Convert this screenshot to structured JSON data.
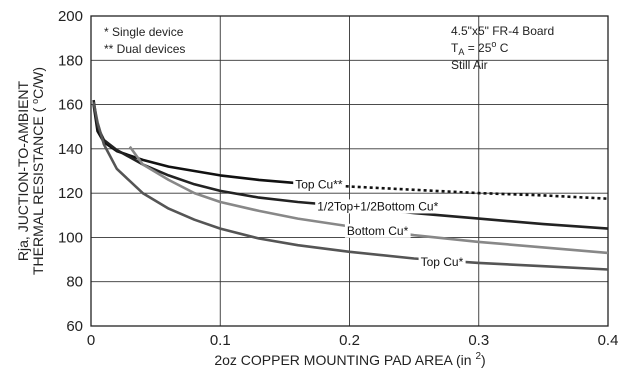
{
  "chart_data": {
    "type": "line",
    "title": "",
    "xlabel": "2oz COPPER MOUNTING PAD AREA (in ²)",
    "ylabel_line1": "Rja, JUCTION-TO-AMBIENT",
    "ylabel_line2": "THERMAL RESISTANCE ( °C/W)",
    "xlim": [
      0,
      0.4
    ],
    "ylim": [
      60,
      200
    ],
    "x_ticks": [
      "0",
      "0.1",
      "0.2",
      "0.3",
      "0.4"
    ],
    "y_ticks": [
      "60",
      "80",
      "100",
      "120",
      "140",
      "160",
      "180",
      "200"
    ],
    "grid": true,
    "legend_notes": [
      "* Single device",
      "** Dual devices"
    ],
    "conditions": [
      "4.5\"x5\" FR-4 Board",
      "TA = 25°C",
      "Still Air"
    ],
    "series": [
      {
        "name": "Top Cu**",
        "color": "#111111",
        "points": [
          [
            0.002,
            160
          ],
          [
            0.005,
            148
          ],
          [
            0.01,
            143
          ],
          [
            0.02,
            139
          ],
          [
            0.04,
            135
          ],
          [
            0.06,
            132
          ],
          [
            0.08,
            130
          ],
          [
            0.1,
            128
          ],
          [
            0.13,
            126
          ],
          [
            0.16,
            124.5
          ],
          [
            0.2,
            123
          ],
          [
            0.25,
            121.5
          ],
          [
            0.3,
            120
          ],
          [
            0.35,
            119
          ],
          [
            0.4,
            117.5
          ]
        ],
        "dashed_from_x": 0.16
      },
      {
        "name": "1/2Top+1/2Bottom Cu*",
        "color": "#222222",
        "points": [
          [
            0.002,
            162
          ],
          [
            0.005,
            150
          ],
          [
            0.01,
            144
          ],
          [
            0.02,
            139.5
          ],
          [
            0.04,
            133
          ],
          [
            0.06,
            128
          ],
          [
            0.08,
            124
          ],
          [
            0.1,
            121
          ],
          [
            0.13,
            118
          ],
          [
            0.16,
            116
          ],
          [
            0.2,
            114
          ],
          [
            0.25,
            111
          ],
          [
            0.3,
            108.5
          ],
          [
            0.35,
            106
          ],
          [
            0.4,
            104
          ]
        ]
      },
      {
        "name": "Bottom Cu*",
        "color": "#888888",
        "points": [
          [
            0.03,
            141
          ],
          [
            0.04,
            133
          ],
          [
            0.06,
            126
          ],
          [
            0.08,
            120
          ],
          [
            0.1,
            116
          ],
          [
            0.13,
            112
          ],
          [
            0.16,
            108.5
          ],
          [
            0.2,
            105
          ],
          [
            0.25,
            101
          ],
          [
            0.3,
            98
          ],
          [
            0.35,
            95.5
          ],
          [
            0.4,
            93
          ]
        ]
      },
      {
        "name": "Top Cu*",
        "color": "#555555",
        "points": [
          [
            0.002,
            161
          ],
          [
            0.005,
            152
          ],
          [
            0.01,
            142
          ],
          [
            0.02,
            131
          ],
          [
            0.04,
            120
          ],
          [
            0.06,
            113
          ],
          [
            0.08,
            108
          ],
          [
            0.1,
            104
          ],
          [
            0.13,
            99.5
          ],
          [
            0.16,
            96.5
          ],
          [
            0.2,
            93.5
          ],
          [
            0.25,
            90.5
          ],
          [
            0.3,
            88.5
          ],
          [
            0.35,
            87
          ],
          [
            0.4,
            85.5
          ]
        ]
      }
    ],
    "annotations": [
      {
        "series": "Top Cu**",
        "text": "Top Cu**",
        "x": 0.158,
        "y": 124
      },
      {
        "series": "1/2Top+1/2Bottom Cu*",
        "text": "1/2Top+1/2Bottom Cu*",
        "x": 0.175,
        "y": 114
      },
      {
        "series": "Bottom Cu*",
        "text": "Bottom Cu*",
        "x": 0.198,
        "y": 103
      },
      {
        "series": "Top Cu*",
        "text": "Top Cu*",
        "x": 0.255,
        "y": 89
      }
    ]
  }
}
